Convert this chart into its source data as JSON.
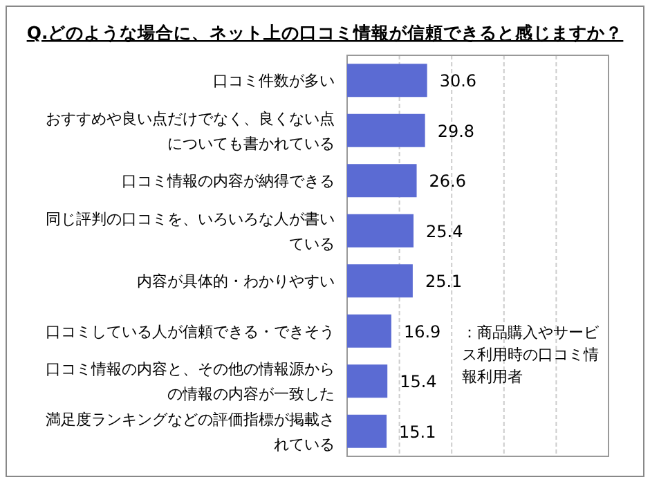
{
  "chart_data": {
    "type": "bar",
    "orientation": "horizontal",
    "title": "Q.どのような場合に、ネット上の口コミ情報が信頼できると感じますか？",
    "categories": [
      "口コミ件数が多い",
      "おすすめや良い点だけでなく、良くない点についても書かれている",
      "口コミ情報の内容が納得できる",
      "同じ評判の口コミを、いろいろな人が書いている",
      "内容が具体的・わかりやすい",
      "口コミしている人が信頼できる・できそう",
      "口コミ情報の内容と、その他の情報源からの情報の内容が一致した",
      "満足度ランキングなどの評価指標が掲載されている"
    ],
    "values": [
      30.6,
      29.8,
      26.6,
      25.4,
      25.1,
      16.9,
      15.4,
      15.1
    ],
    "color": "#5b6bd3",
    "data_labels": true,
    "xlim": [
      0,
      100
    ],
    "xticks": [
      {
        "value": 0,
        "label": null
      },
      {
        "value": 20,
        "label": null
      },
      {
        "value": 40,
        "label": null
      },
      {
        "value": 60,
        "label": null
      },
      {
        "value": 80,
        "label": null
      },
      {
        "value": 100,
        "label": null
      }
    ],
    "grid": "x",
    "tick_labels": "y",
    "annotations": [
      "：商品購入やサービス利用時の口コミ情報利用者"
    ]
  }
}
